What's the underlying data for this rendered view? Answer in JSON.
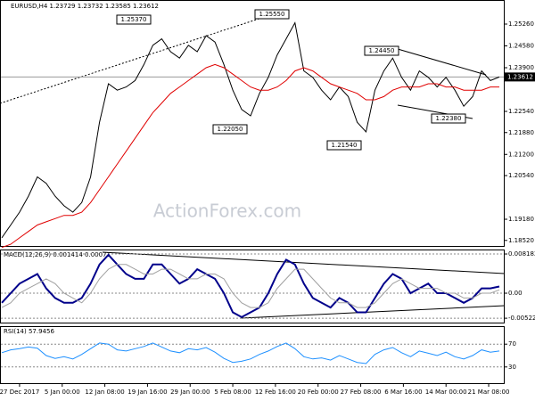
{
  "chart_data": [
    {
      "type": "line",
      "title": "EURUSD,H4 1.23729 1.23732 1.23585 1.23612",
      "watermark": "ActionForex.com",
      "ylim": [
        1.1832,
        1.2601
      ],
      "xlim": [
        0,
        56
      ],
      "yticks": [
        {
          "value": 1.2526,
          "label": "1.25260"
        },
        {
          "value": 1.2458,
          "label": "1.24580"
        },
        {
          "value": 1.239,
          "label": "1.23900"
        },
        {
          "value": 1.2254,
          "label": "1.22540"
        },
        {
          "value": 1.2188,
          "label": "1.21880"
        },
        {
          "value": 1.212,
          "label": "1.21200"
        },
        {
          "value": 1.2054,
          "label": "1.20540"
        },
        {
          "value": 1.1918,
          "label": "1.19180"
        },
        {
          "value": 1.1852,
          "label": "1.18520"
        }
      ],
      "current_price": {
        "value": 1.23612,
        "label": "1.23612"
      },
      "annotations": [
        "1.25370",
        "1.25550",
        "1.24450",
        "1.22050",
        "1.21540",
        "1.22380"
      ],
      "series": [
        {
          "name": "EURUSD",
          "color": "#000000",
          "values": [
            1.186,
            1.19,
            1.194,
            1.199,
            1.205,
            1.203,
            1.199,
            1.196,
            1.194,
            1.197,
            1.205,
            1.222,
            1.234,
            1.232,
            1.233,
            1.235,
            1.24,
            1.246,
            1.248,
            1.244,
            1.242,
            1.246,
            1.244,
            1.249,
            1.247,
            1.24,
            1.232,
            1.226,
            1.224,
            1.231,
            1.236,
            1.243,
            1.248,
            1.253,
            1.238,
            1.236,
            1.232,
            1.229,
            1.233,
            1.23,
            1.222,
            1.219,
            1.232,
            1.238,
            1.242,
            1.236,
            1.232,
            1.238,
            1.236,
            1.233,
            1.236,
            1.232,
            1.227,
            1.23,
            1.238,
            1.235,
            1.2361
          ]
        },
        {
          "name": "MA",
          "color": "#e00000",
          "values": [
            1.183,
            1.184,
            1.186,
            1.188,
            1.19,
            1.191,
            1.192,
            1.193,
            1.193,
            1.194,
            1.197,
            1.201,
            1.205,
            1.209,
            1.213,
            1.217,
            1.221,
            1.225,
            1.228,
            1.231,
            1.233,
            1.235,
            1.237,
            1.239,
            1.24,
            1.239,
            1.237,
            1.235,
            1.233,
            1.232,
            1.232,
            1.233,
            1.235,
            1.238,
            1.239,
            1.238,
            1.236,
            1.234,
            1.233,
            1.232,
            1.231,
            1.229,
            1.229,
            1.23,
            1.232,
            1.233,
            1.233,
            1.233,
            1.234,
            1.234,
            1.233,
            1.233,
            1.232,
            1.232,
            1.232,
            1.233,
            1.233
          ]
        }
      ]
    },
    {
      "type": "line",
      "title": "MACD(12,26,9) 0.001414 0.00071",
      "ylim": [
        -0.00632,
        0.00893
      ],
      "xlim": [
        0,
        56
      ],
      "yticks": [
        0.008182,
        {
          "value": 0,
          "label": "0.00"
        },
        -0.005223
      ],
      "series": [
        {
          "name": "MACD",
          "color": "#00008b",
          "values": [
            -0.002,
            0.0,
            0.002,
            0.003,
            0.004,
            0.001,
            -0.001,
            -0.002,
            -0.002,
            -0.001,
            0.002,
            0.006,
            0.008,
            0.006,
            0.004,
            0.003,
            0.003,
            0.006,
            0.006,
            0.004,
            0.002,
            0.003,
            0.005,
            0.004,
            0.003,
            0.0,
            -0.004,
            -0.005,
            -0.004,
            -0.003,
            0.0,
            0.004,
            0.007,
            0.006,
            0.002,
            -0.001,
            -0.002,
            -0.003,
            -0.001,
            -0.002,
            -0.004,
            -0.004,
            -0.001,
            0.002,
            0.004,
            0.003,
            0.0,
            0.001,
            0.002,
            0.0,
            0.0,
            -0.001,
            -0.002,
            -0.001,
            0.001,
            0.001,
            0.0014
          ]
        },
        {
          "name": "Signal",
          "color": "#a0a0a0",
          "values": [
            -0.003,
            -0.002,
            0.0,
            0.001,
            0.002,
            0.003,
            0.002,
            0.0,
            -0.001,
            -0.002,
            0.0,
            0.003,
            0.005,
            0.006,
            0.006,
            0.005,
            0.004,
            0.004,
            0.005,
            0.005,
            0.004,
            0.003,
            0.003,
            0.004,
            0.004,
            0.003,
            0.0,
            -0.002,
            -0.003,
            -0.003,
            -0.002,
            0.001,
            0.003,
            0.005,
            0.005,
            0.003,
            0.001,
            -0.001,
            -0.002,
            -0.002,
            -0.003,
            -0.003,
            -0.002,
            0.0,
            0.002,
            0.003,
            0.002,
            0.001,
            0.001,
            0.001,
            0.0,
            0.0,
            -0.001,
            -0.001,
            0.0,
            0.0,
            0.0007
          ]
        }
      ]
    },
    {
      "type": "line",
      "title": "RSI(14) 57.9456",
      "ylim": [
        0,
        100
      ],
      "xlim": [
        0,
        56
      ],
      "yticks": [
        70,
        30
      ],
      "xticks": [
        {
          "value": 2,
          "label": "27 Dec 2017"
        },
        {
          "value": 6.8,
          "label": "5 Jan 00:00"
        },
        {
          "value": 11.6,
          "label": "12 Jan 08:00"
        },
        {
          "value": 16.4,
          "label": "19 Jan 16:00"
        },
        {
          "value": 21.2,
          "label": "29 Jan 00:00"
        },
        {
          "value": 26,
          "label": "5 Feb 08:00"
        },
        {
          "value": 30.8,
          "label": "12 Feb 16:00"
        },
        {
          "value": 35.6,
          "label": "20 Feb 00:00"
        },
        {
          "value": 40.4,
          "label": "27 Feb 08:00"
        },
        {
          "value": 45.2,
          "label": "6 Mar 16:00"
        },
        {
          "value": 50,
          "label": "14 Mar 00:00"
        },
        {
          "value": 54.8,
          "label": "21 Mar 08:00"
        }
      ],
      "series": [
        {
          "name": "RSI",
          "color": "#1e90ff",
          "values": [
            55,
            60,
            62,
            65,
            63,
            50,
            45,
            48,
            44,
            52,
            62,
            72,
            70,
            60,
            58,
            62,
            66,
            72,
            65,
            58,
            55,
            62,
            60,
            64,
            56,
            45,
            38,
            40,
            44,
            52,
            58,
            66,
            72,
            62,
            48,
            44,
            46,
            42,
            50,
            44,
            38,
            36,
            52,
            60,
            64,
            55,
            48,
            58,
            54,
            50,
            56,
            48,
            44,
            50,
            60,
            56,
            57.9456
          ]
        }
      ]
    }
  ]
}
